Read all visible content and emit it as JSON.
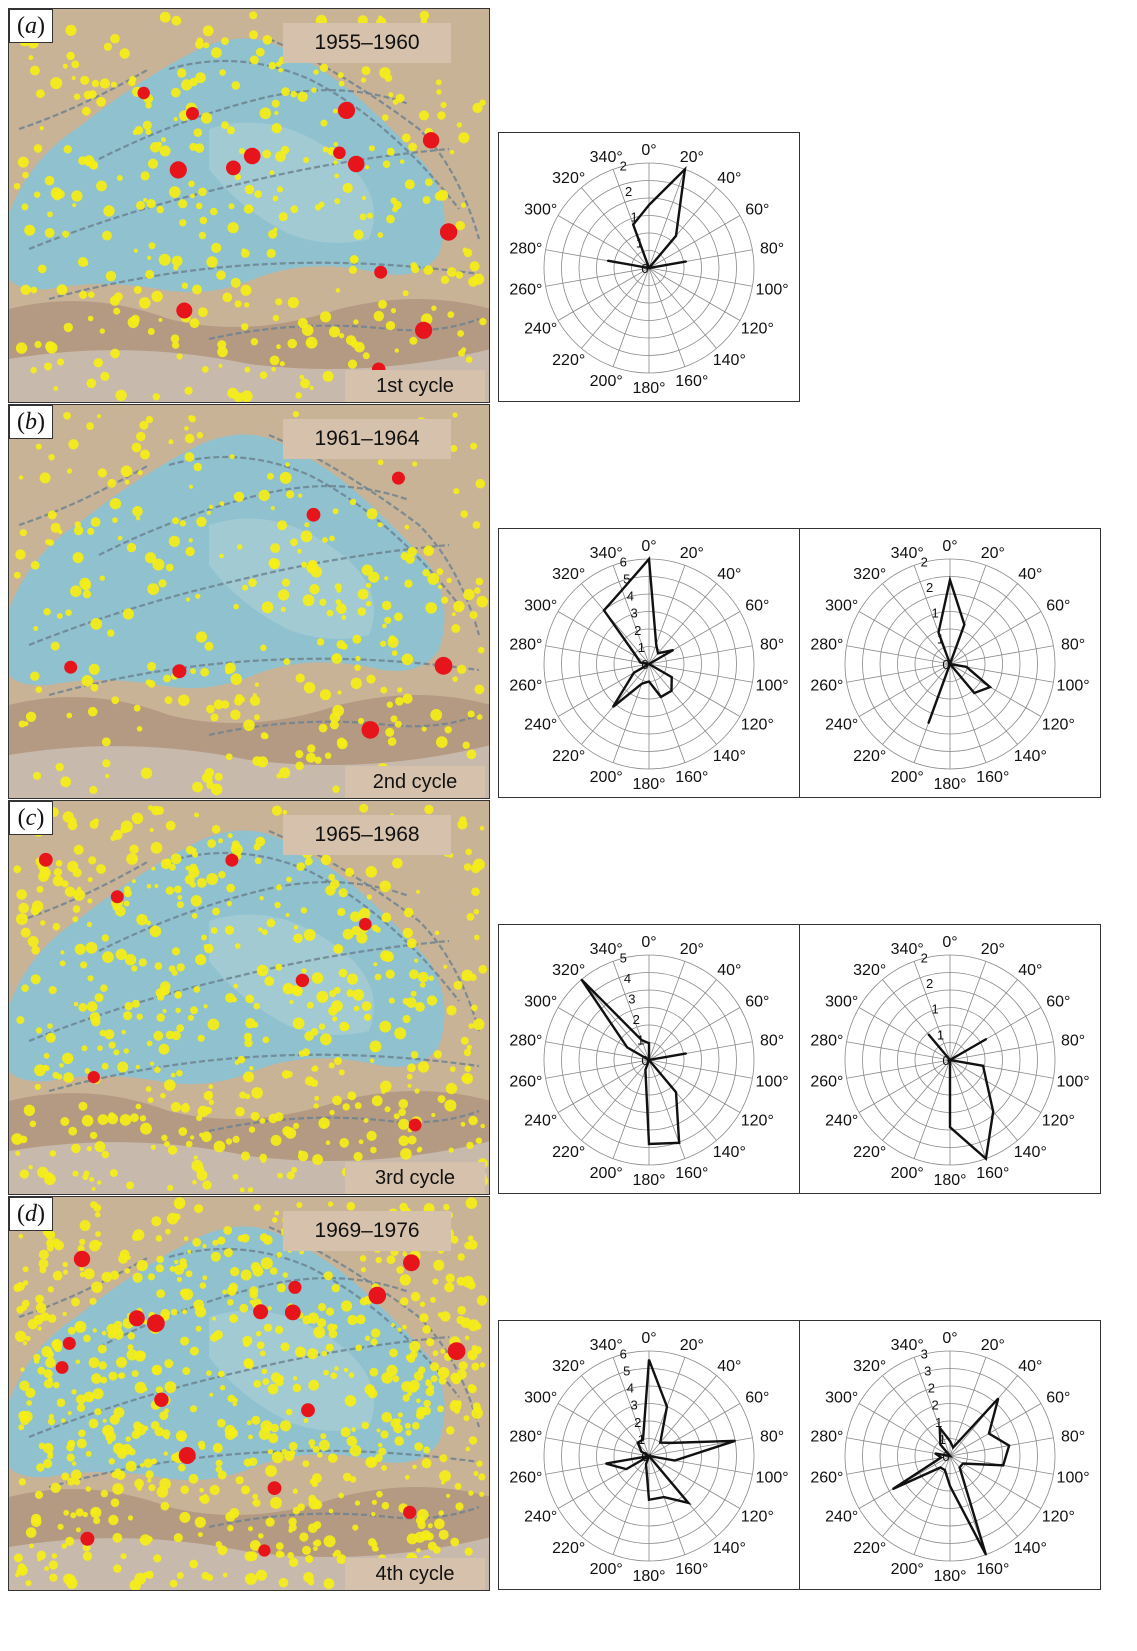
{
  "panels": [
    {
      "letter": "a",
      "period": "1955–1960",
      "cycle": "1st cycle",
      "map": {
        "yellow_count": 360,
        "red_count": 14,
        "seed": 11
      },
      "roses": [
        {
          "type": "rose",
          "scale_labels": [
            "2",
            "2",
            "1",
            "1",
            "0"
          ],
          "rmax": 2.5,
          "directions_deg": [
            0,
            20,
            40,
            60,
            80,
            100,
            120,
            140,
            160,
            180,
            200,
            220,
            240,
            260,
            280,
            300,
            320,
            340
          ],
          "values": [
            1.5,
            2.5,
            1.0,
            0,
            0.9,
            0,
            0,
            0,
            0,
            0,
            0,
            0,
            0,
            0,
            1.0,
            0,
            0,
            1.1
          ]
        }
      ]
    },
    {
      "letter": "b",
      "period": "1961–1964",
      "cycle": "2nd cycle",
      "map": {
        "yellow_count": 300,
        "red_count": 6,
        "seed": 23
      },
      "roses": [
        {
          "type": "rose",
          "scale_labels": [
            "6",
            "5",
            "4",
            "3",
            "2",
            "1",
            "0"
          ],
          "rmax": 6,
          "directions_deg": [
            0,
            20,
            40,
            60,
            80,
            100,
            120,
            140,
            160,
            180,
            200,
            220,
            240,
            260,
            280,
            300,
            320,
            340
          ],
          "values": [
            6.0,
            1.2,
            0.8,
            1.6,
            0,
            0,
            1.5,
            2.0,
            2.0,
            1.0,
            1.2,
            3.2,
            1.0,
            0,
            0.5,
            0.8,
            4.0,
            4.5
          ]
        },
        {
          "type": "rose",
          "scale_labels": [
            "2",
            "2",
            "1",
            "1",
            "0"
          ],
          "rmax": 2.5,
          "directions_deg": [
            0,
            20,
            40,
            60,
            80,
            100,
            120,
            140,
            160,
            180,
            200,
            220,
            240,
            260,
            280,
            300,
            320,
            340
          ],
          "values": [
            2.0,
            1.0,
            0,
            0,
            0,
            0.4,
            1.1,
            0.9,
            0,
            0,
            1.5,
            0,
            0,
            0,
            0,
            0,
            0,
            0.8
          ]
        }
      ]
    },
    {
      "letter": "c",
      "period": "1965–1968",
      "cycle": "3rd cycle",
      "map": {
        "yellow_count": 520,
        "red_count": 7,
        "seed": 37
      },
      "roses": [
        {
          "type": "rose",
          "scale_labels": [
            "5",
            "4",
            "3",
            "2",
            "1",
            "0"
          ],
          "rmax": 5,
          "directions_deg": [
            0,
            20,
            40,
            60,
            80,
            100,
            120,
            140,
            160,
            180,
            200,
            220,
            240,
            260,
            280,
            300,
            320,
            340
          ],
          "values": [
            0.8,
            0,
            0,
            0,
            1.8,
            0,
            0,
            2.0,
            4.2,
            4.0,
            0.5,
            0,
            0,
            0,
            0,
            1.2,
            5.0,
            1.0
          ]
        },
        {
          "type": "rose",
          "scale_labels": [
            "2",
            "2",
            "1",
            "1",
            "0"
          ],
          "rmax": 2.5,
          "directions_deg": [
            0,
            20,
            40,
            60,
            80,
            100,
            120,
            140,
            160,
            180,
            200,
            220,
            240,
            260,
            280,
            300,
            320,
            340
          ],
          "values": [
            0,
            0,
            0,
            1.0,
            0,
            0.8,
            1.0,
            1.6,
            2.5,
            1.6,
            0,
            0,
            0,
            0,
            0,
            0,
            0.8,
            0
          ]
        }
      ]
    },
    {
      "letter": "d",
      "period": "1969–1976",
      "cycle": "4th cycle",
      "map": {
        "yellow_count": 720,
        "red_count": 18,
        "seed": 53
      },
      "roses": [
        {
          "type": "rose",
          "scale_labels": [
            "6",
            "5",
            "4",
            "3",
            "2",
            "1",
            "0"
          ],
          "rmax": 6,
          "directions_deg": [
            0,
            20,
            40,
            60,
            80,
            100,
            120,
            140,
            160,
            180,
            200,
            220,
            240,
            260,
            280,
            300,
            320,
            340
          ],
          "values": [
            5.5,
            3.0,
            1.0,
            1.5,
            5.0,
            1.5,
            0,
            3.5,
            2.5,
            2.5,
            0.5,
            0,
            1.5,
            2.5,
            0,
            0.5,
            1.0,
            1.0
          ]
        },
        {
          "type": "rose",
          "scale_labels": [
            "3",
            "3",
            "2",
            "2",
            "1",
            "1",
            "0"
          ],
          "rmax": 3.5,
          "directions_deg": [
            0,
            20,
            40,
            60,
            80,
            100,
            120,
            140,
            160,
            180,
            200,
            220,
            240,
            260,
            280,
            300,
            320,
            340
          ],
          "values": [
            0.5,
            0.3,
            2.5,
            1.5,
            2.0,
            1.8,
            0.5,
            0.5,
            3.5,
            1.0,
            0.5,
            0.5,
            2.2,
            0.3,
            0.5,
            0,
            0.5,
            1.0
          ]
        }
      ]
    }
  ],
  "angle_labels": [
    "0°",
    "20°",
    "40°",
    "60°",
    "80°",
    "100°",
    "120°",
    "140°",
    "160°",
    "180°",
    "200°",
    "220°",
    "240°",
    "260°",
    "280°",
    "300°",
    "320°",
    "340°"
  ],
  "colors": {
    "basin": "#8fc1cf",
    "land": "#c9b397",
    "mountain": "#b49a83",
    "fault": "#6f8290",
    "yellow_quake": "#f5ee16",
    "red_quake": "#e8141c",
    "label_bg": "#d6c2ac"
  }
}
